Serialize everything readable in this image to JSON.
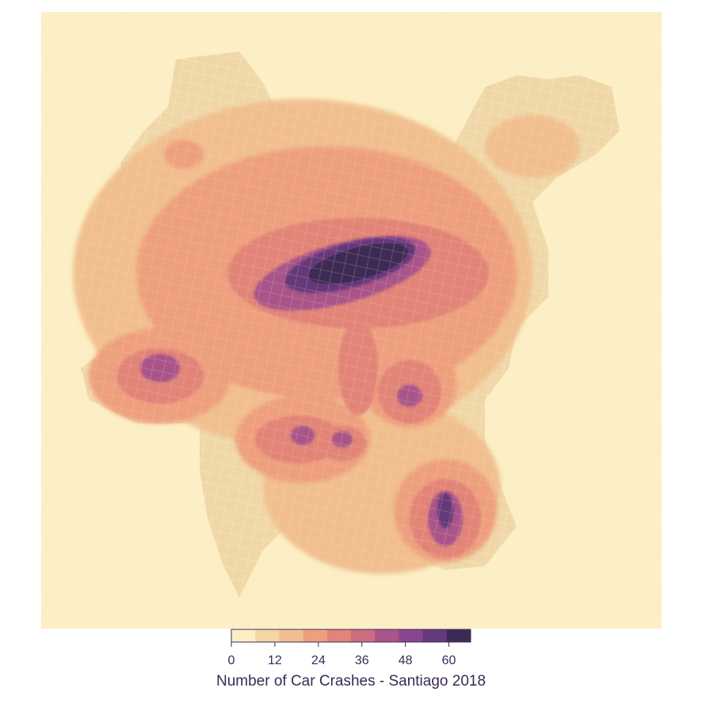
{
  "legend": {
    "title": "Number of Car Crashes - Santiago 2018",
    "ticks": [
      "0",
      "12",
      "24",
      "36",
      "48",
      "60"
    ],
    "bins": [
      "#fcefc5",
      "#f3d6a2",
      "#f1bf8f",
      "#ee9f7e",
      "#e28478",
      "#cb6d7f",
      "#a9548a",
      "#8a4590",
      "#65397a",
      "#3e2b55"
    ]
  },
  "colors": {
    "background": "#fcefc5",
    "urban_area": "#f0d7a8",
    "streets": "#fbe7c8"
  }
}
